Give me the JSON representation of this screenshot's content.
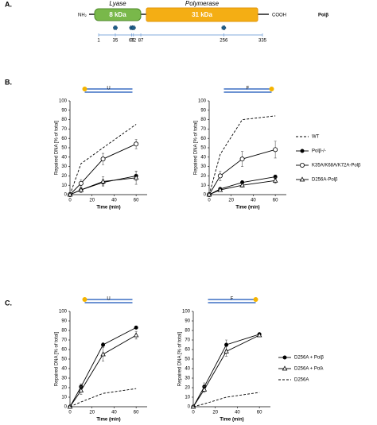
{
  "domain_map": {
    "label": "A.",
    "nh2": "NH₂",
    "lyase": "Lyase",
    "lyase_size": "8 kDa",
    "polymerase": "Polymerase",
    "polymerase_size": "31 kDa",
    "cooh": "COOH",
    "protein": "Polβ",
    "residues": [
      1,
      35,
      68,
      72,
      87,
      256,
      335
    ],
    "mutated": [
      35,
      68,
      72,
      256
    ]
  },
  "panel_b_label": "B.",
  "panel_c_label": "C.",
  "chart_data": [
    {
      "type": "line",
      "substrate_label": "U",
      "y_label": "Repaired DNA [% of total]",
      "x_label": "Time (min)",
      "x": [
        0,
        10,
        30,
        60
      ],
      "xlim": [
        0,
        70
      ],
      "xticks": [
        0,
        20,
        40,
        60
      ],
      "ylim": [
        0,
        100
      ],
      "yticks": [
        0,
        10,
        20,
        30,
        40,
        50,
        60,
        70,
        80,
        90,
        100
      ],
      "series": [
        {
          "color": "#000000",
          "marker": "none",
          "dash": true,
          "values": [
            0,
            33,
            50,
            75
          ]
        },
        {
          "color": "#000000",
          "marker": "filled-circle",
          "dash": false,
          "values": [
            0,
            5,
            13,
            20
          ],
          "errors": [
            0,
            2,
            3,
            5
          ]
        },
        {
          "color": "#000000",
          "marker": "open-circle",
          "dash": false,
          "values": [
            0,
            12,
            38,
            54
          ],
          "errors": [
            0,
            4,
            6,
            5
          ]
        },
        {
          "color": "#000000",
          "marker": "open-triangle",
          "dash": false,
          "values": [
            0,
            5,
            14,
            18
          ],
          "errors": [
            0,
            3,
            5,
            7
          ]
        }
      ]
    },
    {
      "type": "line",
      "substrate_label": "F",
      "y_label": "Repaired DNA [% of total]",
      "x_label": "Time (min)",
      "x": [
        0,
        10,
        30,
        60
      ],
      "xlim": [
        0,
        70
      ],
      "xticks": [
        0,
        20,
        40,
        60
      ],
      "ylim": [
        0,
        100
      ],
      "yticks": [
        0,
        10,
        20,
        30,
        40,
        50,
        60,
        70,
        80,
        90,
        100
      ],
      "legend": "outside-right",
      "series": [
        {
          "name": "WT",
          "color": "#000000",
          "marker": "none",
          "dash": true,
          "values": [
            0,
            43,
            80,
            84
          ]
        },
        {
          "name": "Polβ-/-",
          "color": "#000000",
          "marker": "filled-circle",
          "dash": false,
          "values": [
            0,
            6,
            13,
            19
          ],
          "errors": [
            0,
            1,
            2,
            2
          ]
        },
        {
          "name": "K35A/K68A/K72A-Polβ",
          "color": "#000000",
          "marker": "open-circle",
          "dash": false,
          "values": [
            0,
            20,
            38,
            48
          ],
          "errors": [
            0,
            5,
            8,
            9
          ]
        },
        {
          "name": "D256A-Polβ",
          "color": "#000000",
          "marker": "open-triangle",
          "dash": false,
          "values": [
            0,
            5,
            10,
            15
          ],
          "errors": [
            0,
            1,
            2,
            3
          ]
        }
      ]
    },
    {
      "type": "line",
      "substrate_label": "U",
      "y_label": "Repaired DNA [% of total]",
      "x_label": "Time (min)",
      "x": [
        0,
        10,
        30,
        60
      ],
      "xlim": [
        0,
        70
      ],
      "xticks": [
        0,
        20,
        40,
        60
      ],
      "ylim": [
        0,
        100
      ],
      "yticks": [
        0,
        10,
        20,
        30,
        40,
        50,
        60,
        70,
        80,
        90,
        100
      ],
      "series": [
        {
          "color": "#000000",
          "marker": "filled-circle",
          "dash": false,
          "values": [
            0,
            21,
            65,
            83
          ],
          "errors": [
            0,
            3,
            2,
            1
          ]
        },
        {
          "color": "#000000",
          "marker": "open-triangle",
          "dash": false,
          "values": [
            0,
            17,
            55,
            75
          ],
          "errors": [
            0,
            4,
            7,
            4
          ]
        },
        {
          "color": "#000000",
          "marker": "none",
          "dash": true,
          "values": [
            0,
            5,
            14,
            19
          ]
        }
      ]
    },
    {
      "type": "line",
      "substrate_label": "F",
      "y_label": "Repaired DNA [% of total]",
      "x_label": "Time (min)",
      "x": [
        0,
        10,
        30,
        60
      ],
      "xlim": [
        0,
        70
      ],
      "xticks": [
        0,
        20,
        40,
        60
      ],
      "ylim": [
        0,
        100
      ],
      "yticks": [
        0,
        10,
        20,
        30,
        40,
        50,
        60,
        70,
        80,
        90,
        100
      ],
      "legend": "outside-right",
      "series": [
        {
          "name": "D256A + Polβ",
          "color": "#000000",
          "marker": "filled-circle",
          "dash": false,
          "values": [
            0,
            21,
            65,
            76
          ],
          "errors": [
            0,
            4,
            5,
            1
          ]
        },
        {
          "name": "D256A + Polλ",
          "color": "#000000",
          "marker": "open-triangle",
          "dash": false,
          "values": [
            0,
            18,
            58,
            75
          ],
          "errors": [
            0,
            3,
            5,
            1
          ]
        },
        {
          "name": "D256A",
          "color": "#000000",
          "marker": "none",
          "dash": true,
          "values": [
            0,
            3,
            10,
            15
          ]
        }
      ]
    }
  ]
}
